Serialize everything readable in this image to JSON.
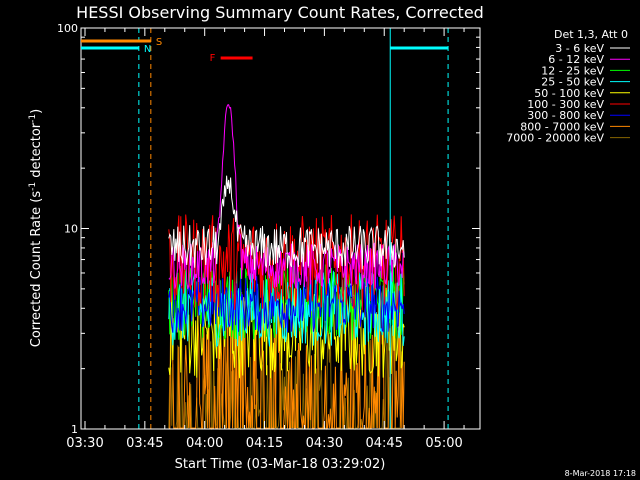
{
  "chart_data": {
    "type": "line",
    "title": "HESSI Observing Summary Count Rates, Corrected",
    "xlabel": "Start Time (03-Mar-18 03:29:02)",
    "ylabel_main": "Corrected Count Rate (s",
    "ylabel_sup": "-1",
    "ylabel_tail": " detector",
    "ylabel_close": ")",
    "yscale": "log",
    "ylim": [
      1,
      100
    ],
    "xlim_minutes": [
      0,
      100
    ],
    "x_ticks": [
      "03:30",
      "03:45",
      "04:00",
      "04:15",
      "04:30",
      "04:45",
      "05:00"
    ],
    "y_ticks": [
      "1",
      "10",
      "100"
    ],
    "legend_title": "Det 1,3, Att 0",
    "series": [
      {
        "name": "3 - 6 keV",
        "color": "#ffffff",
        "level": 8.0,
        "spread": 0.12
      },
      {
        "name": "6 - 12 keV",
        "color": "#ff00ff",
        "level": 6.5,
        "spread": 0.12
      },
      {
        "name": "12 - 25 keV",
        "color": "#00ff00",
        "level": 4.3,
        "spread": 0.2
      },
      {
        "name": "25 - 50 keV",
        "color": "#00ffff",
        "level": 4.0,
        "spread": 0.2
      },
      {
        "name": "50 - 100 keV",
        "color": "#ffff00",
        "level": 3.1,
        "spread": 0.25
      },
      {
        "name": "100 - 300 keV",
        "color": "#ff0000",
        "level": 6.8,
        "spread": 0.25
      },
      {
        "name": "300 - 800 keV",
        "color": "#0000ff",
        "level": 4.2,
        "spread": 0.15
      },
      {
        "name": "800 - 7000 keV",
        "color": "#ff8800",
        "level": 2.3,
        "spread": 0.35
      },
      {
        "name": "7000 - 20000 keV",
        "color": "#886600",
        "level": 1.6,
        "spread": 0.3
      }
    ],
    "peak": {
      "time_minutes": 37,
      "values": {
        "6 - 12 keV": 42,
        "3 - 6 keV": 17
      }
    },
    "data_window_minutes": [
      22,
      81
    ],
    "annotations": [
      {
        "label": "S",
        "color": "#ff8800"
      },
      {
        "label": "N",
        "color": "#00ffff"
      },
      {
        "label": "F",
        "color": "#ff0000"
      }
    ],
    "intervals": {
      "saa_minutes": [
        0,
        17.5
      ],
      "night_minutes": [
        [
          0,
          14.5
        ],
        [
          77.5,
          92
        ]
      ],
      "flare_minutes": [
        35,
        43
      ]
    },
    "vertical_lines_minutes": [
      {
        "t": 17.5,
        "color": "#ff8800",
        "style": "dash"
      },
      {
        "t": 14.5,
        "color": "#00ffff",
        "style": "dash"
      },
      {
        "t": 0,
        "color": "#00ffff",
        "style": "solid"
      },
      {
        "t": 77.5,
        "color": "#00ffff",
        "style": "solid"
      },
      {
        "t": 92,
        "color": "#00ffff",
        "style": "dash"
      }
    ]
  },
  "footer_date": "8-Mar-2018 17:18"
}
